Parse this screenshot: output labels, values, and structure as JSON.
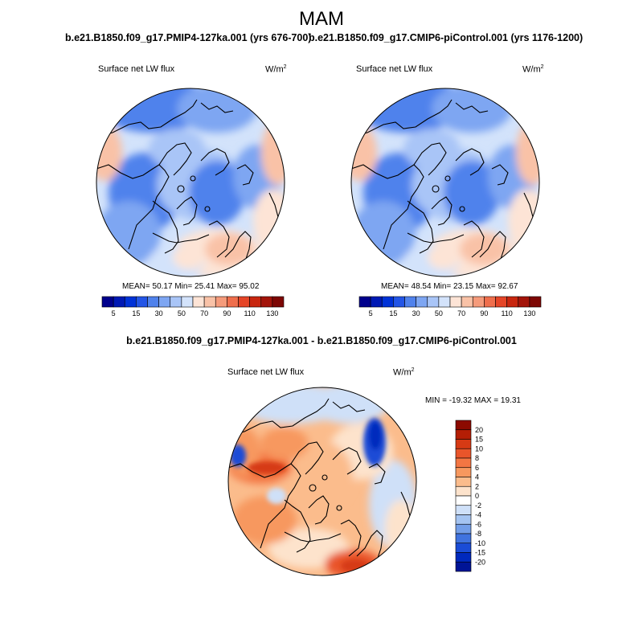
{
  "season": "MAM",
  "panels": [
    {
      "title": "b.e21.B1850.f09_g17.PMIP4-127ka.001 (yrs 676-700)",
      "variable": "Surface net LW flux",
      "units": "W/m",
      "units_exp": "2",
      "stats": "MEAN=  50.17  Min=  25.41  Max=  95.02",
      "mean": 50.17,
      "min": 25.41,
      "max": 95.02
    },
    {
      "title": "b.e21.B1850.f09_g17.CMIP6-piControl.001 (yrs 1176-1200)",
      "variable": "Surface net LW flux",
      "units": "W/m",
      "units_exp": "2",
      "stats": "MEAN=  48.54  Min=  23.15  Max=  92.67",
      "mean": 48.54,
      "min": 23.15,
      "max": 92.67
    }
  ],
  "abs_colorbar": {
    "labels": [
      "5",
      "15",
      "30",
      "50",
      "70",
      "90",
      "110",
      "130"
    ],
    "colors": [
      "#00008c",
      "#0019b4",
      "#0032d7",
      "#2355e6",
      "#5082ec",
      "#7ea6f2",
      "#a9c5f7",
      "#d3e3fb",
      "#fde4d6",
      "#f9c2a7",
      "#f59b7b",
      "#ef6e4c",
      "#e54527",
      "#c8260f",
      "#a3140a",
      "#7d0704"
    ]
  },
  "difference": {
    "title": "b.e21.B1850.f09_g17.PMIP4-127ka.001 - b.e21.B1850.f09_g17.CMIP6-piControl.001",
    "variable": "Surface net LW flux",
    "units": "W/m",
    "units_exp": "2",
    "stats": "MIN = -19.32 MAX =  19.31",
    "min": -19.32,
    "max": 19.31
  },
  "diff_colorbar": {
    "labels": [
      "20",
      "15",
      "10",
      "8",
      "6",
      "4",
      "2",
      "0",
      "-2",
      "-4",
      "-6",
      "-8",
      "-10",
      "-15",
      "-20"
    ],
    "colors": [
      "#8c0a00",
      "#b41e05",
      "#d63a14",
      "#e9552a",
      "#f37643",
      "#f7985f",
      "#fbbc8c",
      "#fde3cc",
      "#ffffff",
      "#cfe0f8",
      "#a5c4f1",
      "#739ee8",
      "#4073df",
      "#1a4cd6",
      "#0029bd",
      "#001496"
    ]
  },
  "colors": {
    "land_outline": "#000000",
    "background": "#ffffff"
  }
}
